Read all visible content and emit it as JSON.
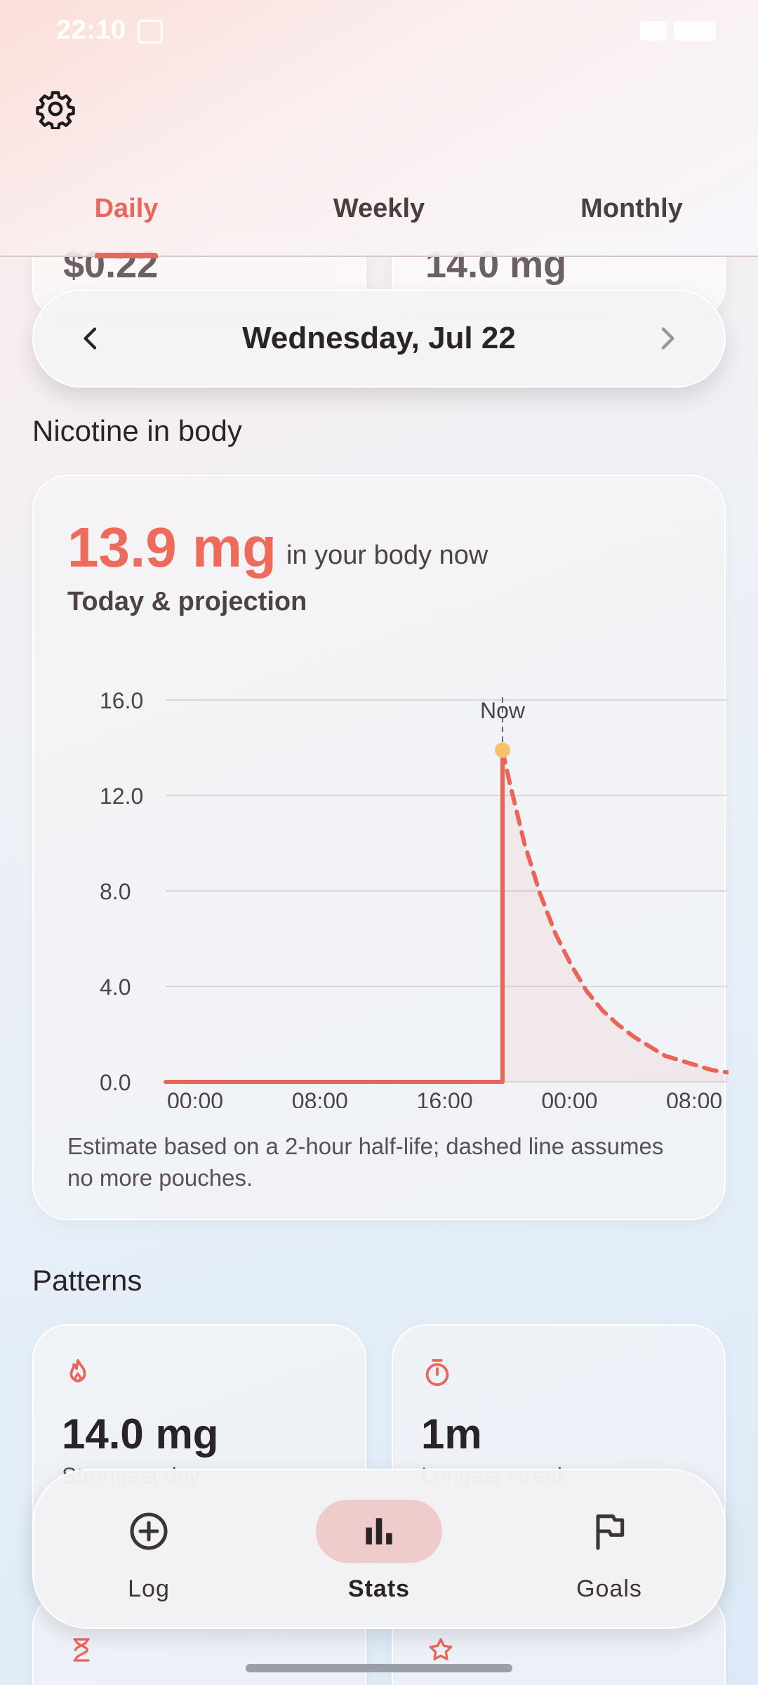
{
  "status_bar": {
    "time": "22:10"
  },
  "header": {
    "tabs": [
      {
        "label": "Daily",
        "active": true
      },
      {
        "label": "Weekly",
        "active": false
      },
      {
        "label": "Monthly",
        "active": false
      }
    ]
  },
  "summary_peek": {
    "left_value": "$0.22",
    "right_value": "14.0 mg"
  },
  "date_selector": {
    "label": "Wednesday, Jul 22"
  },
  "nicotine_section": {
    "title": "Nicotine in body",
    "current_value": "13.9 mg",
    "current_suffix": "in your body now",
    "chart_title": "Today & projection",
    "footnote": "Estimate based on a 2-hour half-life; dashed line assumes no more pouches."
  },
  "chart_data": {
    "type": "line",
    "title": "Today & projection",
    "xlabel": "",
    "ylabel": "",
    "ylim": [
      0,
      16
    ],
    "y_ticks": [
      "16.0",
      "12.0",
      "8.0",
      "4.0",
      "0.0"
    ],
    "x_ticks": [
      "00:00",
      "08:00",
      "16:00",
      "00:00",
      "08:00"
    ],
    "now_label": "Now",
    "grid": true,
    "series": [
      {
        "style": "solid",
        "points": [
          [
            0,
            0
          ],
          [
            21.6,
            0
          ],
          [
            21.6,
            13.9
          ]
        ]
      },
      {
        "style": "dashed",
        "points": [
          [
            21.6,
            13.9
          ],
          [
            22,
            12.7
          ],
          [
            23,
            10.0
          ],
          [
            24,
            7.9
          ],
          [
            25,
            6.2
          ],
          [
            26,
            4.9
          ],
          [
            27,
            3.8
          ],
          [
            28,
            3.0
          ],
          [
            29,
            2.4
          ],
          [
            30,
            1.9
          ],
          [
            31,
            1.5
          ],
          [
            32,
            1.1
          ],
          [
            33,
            0.9
          ],
          [
            34,
            0.7
          ],
          [
            35,
            0.5
          ],
          [
            36,
            0.4
          ]
        ]
      }
    ],
    "now_point": [
      21.6,
      13.9
    ],
    "colors": {
      "line": "#ea6555",
      "now_marker": "#f7c26b",
      "grid": "#dcd8da"
    }
  },
  "patterns": {
    "title": "Patterns",
    "cards": [
      {
        "icon": "flame-icon",
        "value": "14.0 mg",
        "label": "Strongest day"
      },
      {
        "icon": "timer-icon",
        "value": "1m",
        "label": "Longest streak"
      }
    ]
  },
  "bottom_nav": {
    "items": [
      {
        "label": "Log",
        "icon": "add-circle-icon",
        "active": false
      },
      {
        "label": "Stats",
        "icon": "bar-chart-icon",
        "active": true
      },
      {
        "label": "Goals",
        "icon": "flag-icon",
        "active": false
      }
    ]
  },
  "colors": {
    "accent": "#e8675a",
    "active_pill": "#efcccc"
  }
}
